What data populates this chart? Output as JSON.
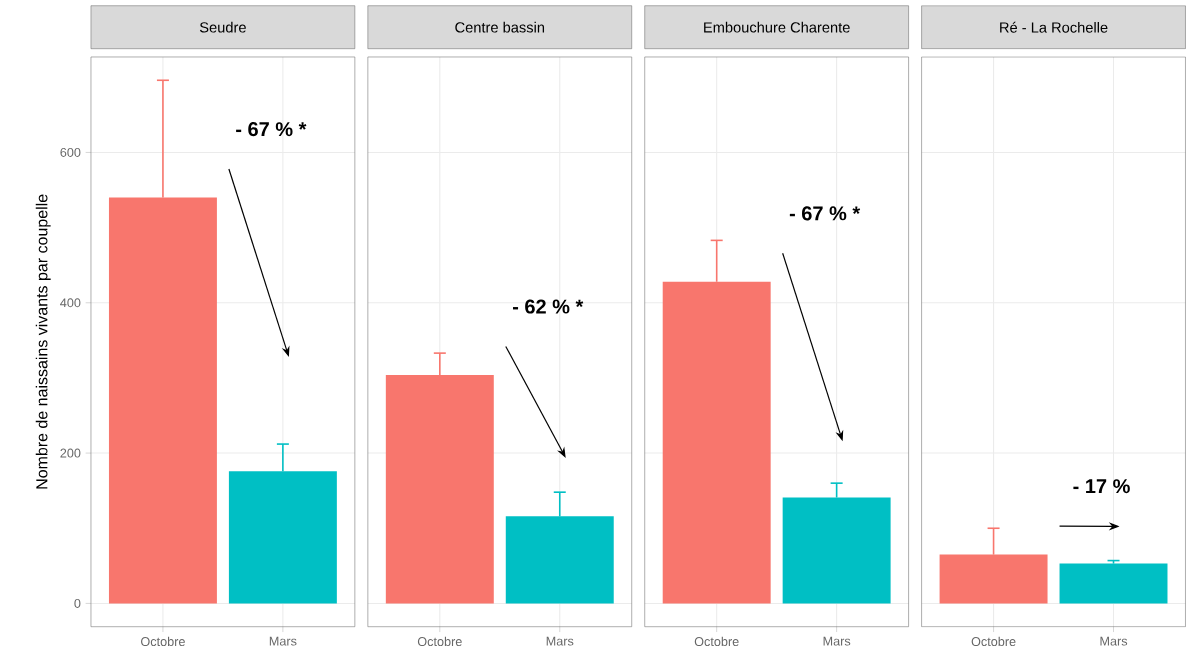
{
  "chart_data": [
    {
      "type": "bar",
      "title": "Seudre",
      "ylabel": "Nombre de naissains vivants par coupelle",
      "categories": [
        "Octobre",
        "Mars"
      ],
      "values": [
        540,
        176
      ],
      "colors": [
        "#f8766d",
        "#00bfc4"
      ],
      "errors": [
        [
          540,
          696
        ],
        [
          176,
          212
        ]
      ],
      "ylim": [
        -31,
        727
      ],
      "yticks": [
        0,
        200,
        400,
        600
      ],
      "grid": true,
      "annotations": [
        "- 67 % *"
      ]
    },
    {
      "type": "bar",
      "title": "Centre bassin",
      "categories": [
        "Octobre",
        "Mars"
      ],
      "values": [
        304,
        116
      ],
      "colors": [
        "#f8766d",
        "#00bfc4"
      ],
      "errors": [
        [
          304,
          333
        ],
        [
          116,
          148
        ]
      ],
      "ylim": [
        -31,
        727
      ],
      "yticks": [
        0,
        200,
        400,
        600
      ],
      "grid": true,
      "tick_labels": "x",
      "annotations": [
        "- 62 % *"
      ]
    },
    {
      "type": "bar",
      "title": "Embouchure Charente",
      "categories": [
        "Octobre",
        "Mars"
      ],
      "values": [
        428,
        141
      ],
      "colors": [
        "#f8766d",
        "#00bfc4"
      ],
      "errors": [
        [
          428,
          483
        ],
        [
          141,
          160
        ]
      ],
      "ylim": [
        -31,
        727
      ],
      "yticks": [
        0,
        200,
        400,
        600
      ],
      "grid": true,
      "tick_labels": "x",
      "annotations": [
        "- 67 % *"
      ]
    },
    {
      "type": "bar",
      "title": "Ré - La Rochelle",
      "categories": [
        "Octobre",
        "Mars"
      ],
      "values": [
        65,
        53
      ],
      "colors": [
        "#f8766d",
        "#00bfc4"
      ],
      "errors": [
        [
          65,
          100
        ],
        [
          53,
          57
        ]
      ],
      "ylim": [
        -31,
        727
      ],
      "yticks": [
        0,
        200,
        400,
        600
      ],
      "grid": true,
      "tick_labels": "x",
      "annotations": [
        "- 17 %"
      ]
    }
  ]
}
